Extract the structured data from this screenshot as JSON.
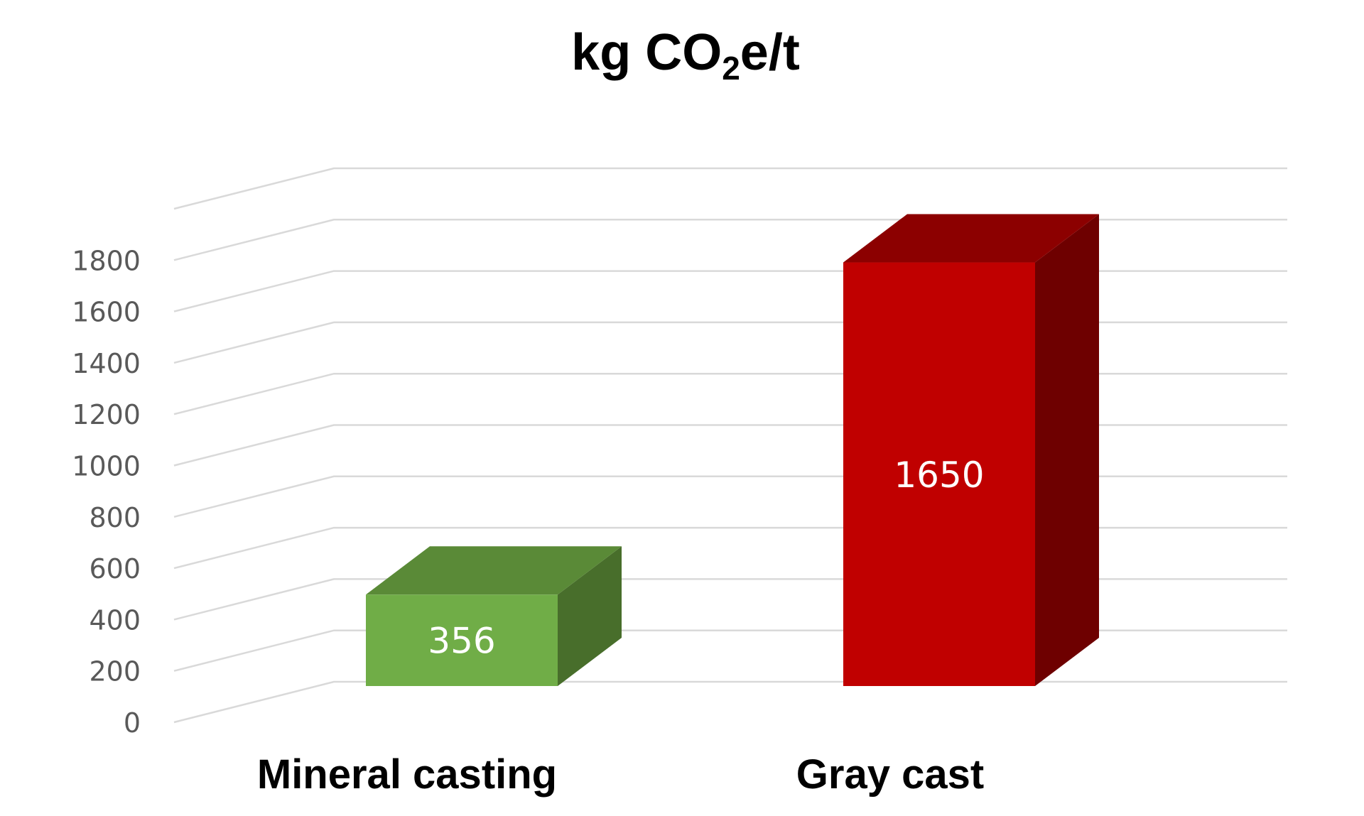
{
  "chart_data": {
    "type": "bar",
    "title_parts": [
      "kg CO",
      "2",
      "e/t"
    ],
    "categories": [
      "Mineral casting",
      "Gray cast"
    ],
    "values": [
      356,
      1650
    ],
    "value_labels": [
      "356",
      "1650"
    ],
    "ylim": [
      0,
      2000
    ],
    "yticks": [
      0,
      200,
      400,
      600,
      800,
      1000,
      1200,
      1400,
      1600,
      1800
    ],
    "ytick_labels": [
      "0",
      "200",
      "400",
      "600",
      "800",
      "1000",
      "1200",
      "1400",
      "1600",
      "1800"
    ],
    "grid": true,
    "legend": false,
    "style_3d": true,
    "colors": {
      "series": [
        {
          "front": "#70ad47",
          "top": "#5a8a37",
          "side": "#486e2b"
        },
        {
          "front": "#c00000",
          "top": "#8c0000",
          "side": "#6e0000"
        }
      ],
      "grid": "#d9d9d9"
    }
  }
}
